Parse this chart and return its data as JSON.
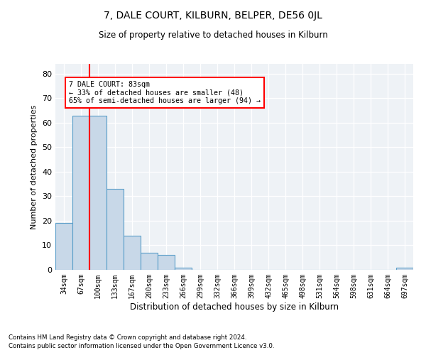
{
  "title": "7, DALE COURT, KILBURN, BELPER, DE56 0JL",
  "subtitle": "Size of property relative to detached houses in Kilburn",
  "xlabel": "Distribution of detached houses by size in Kilburn",
  "ylabel": "Number of detached properties",
  "categories": [
    "34sqm",
    "67sqm",
    "100sqm",
    "133sqm",
    "167sqm",
    "200sqm",
    "233sqm",
    "266sqm",
    "299sqm",
    "332sqm",
    "366sqm",
    "399sqm",
    "432sqm",
    "465sqm",
    "498sqm",
    "531sqm",
    "564sqm",
    "598sqm",
    "631sqm",
    "664sqm",
    "697sqm"
  ],
  "values": [
    19,
    63,
    63,
    33,
    14,
    7,
    6,
    1,
    0,
    0,
    0,
    0,
    0,
    0,
    0,
    0,
    0,
    0,
    0,
    0,
    1
  ],
  "bar_color": "#c8d8e8",
  "bar_edge_color": "#5a9ec9",
  "vline_x_idx": 1.5,
  "vline_color": "red",
  "annotation_text": "7 DALE COURT: 83sqm\n← 33% of detached houses are smaller (48)\n65% of semi-detached houses are larger (94) →",
  "annotation_box_color": "white",
  "annotation_box_edge": "red",
  "ylim": [
    0,
    84
  ],
  "yticks": [
    0,
    10,
    20,
    30,
    40,
    50,
    60,
    70,
    80
  ],
  "footnote1": "Contains HM Land Registry data © Crown copyright and database right 2024.",
  "footnote2": "Contains public sector information licensed under the Open Government Licence v3.0.",
  "bg_color": "#eef2f6"
}
